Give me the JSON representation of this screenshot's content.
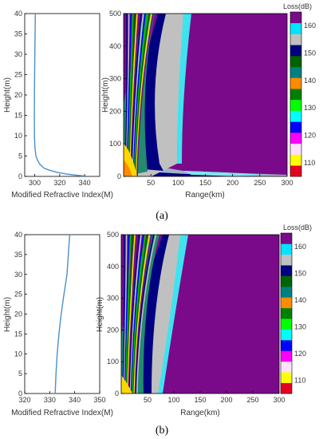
{
  "figure": {
    "panel_a_caption": "(a)",
    "panel_b_caption": "(b)",
    "colorbar_title": "Loss(dB)",
    "colorbar_ticks": [
      110,
      120,
      130,
      140,
      150,
      160
    ],
    "colorbar_range": [
      105,
      165
    ],
    "colorbar_bands": [
      "#e6001f",
      "#ffff00",
      "#ffe1ff",
      "#ff00ff",
      "#0000ff",
      "#00ffff",
      "#00ff00",
      "#008000",
      "#ff8c00",
      "#008080",
      "#006400",
      "#000080",
      "#c0c0c0",
      "#00e5ff",
      "#7a0a8a"
    ]
  },
  "chart_data": [
    {
      "id": "a-profile",
      "type": "line",
      "xlabel": "Modified Refractive Index(M)",
      "ylabel": "Height(m)",
      "xlim": [
        292,
        352
      ],
      "ylim": [
        0,
        40
      ],
      "xticks": [
        300,
        320,
        340
      ],
      "yticks": [
        0,
        5,
        10,
        15,
        20,
        25,
        30,
        35,
        40
      ],
      "color": "#4a90c8",
      "x": [
        300.5,
        300.3,
        300.1,
        299.9,
        299.8,
        299.7,
        299.8,
        300.2,
        301.0,
        302.2,
        304.0,
        307.5,
        312.0,
        318.0,
        325.0,
        333.0,
        340.0
      ],
      "y": [
        40,
        35,
        30,
        25,
        20,
        15,
        10,
        7,
        5,
        4,
        3,
        2,
        1.5,
        1,
        0.6,
        0.3,
        0.1
      ]
    },
    {
      "id": "a-loss",
      "type": "heatmap",
      "xlabel": "Range(km)",
      "ylabel": "Height(m)",
      "xlim": [
        0,
        300
      ],
      "ylim": [
        0,
        500
      ],
      "xticks": [
        50,
        100,
        150,
        200,
        250,
        300
      ],
      "yticks": [
        0,
        100,
        200,
        300,
        400,
        500
      ]
    },
    {
      "id": "b-profile",
      "type": "line",
      "xlabel": "Modified Refractive Index(M)",
      "ylabel": "Height(m)",
      "xlim": [
        320,
        350
      ],
      "ylim": [
        0,
        40
      ],
      "xticks": [
        320,
        330,
        340,
        350
      ],
      "yticks": [
        0,
        5,
        10,
        15,
        20,
        25,
        30,
        35,
        40
      ],
      "color": "#4a90c8",
      "x": [
        332.2,
        332.5,
        333.0,
        333.7,
        334.6,
        335.7,
        336.9,
        338.0
      ],
      "y": [
        0,
        5,
        10,
        15,
        20,
        25,
        30,
        40
      ]
    },
    {
      "id": "b-loss",
      "type": "heatmap",
      "xlabel": "Range(km)",
      "ylabel": "Height(m)",
      "xlim": [
        0,
        300
      ],
      "ylim": [
        0,
        500
      ],
      "xticks": [
        50,
        100,
        150,
        200,
        250,
        300
      ],
      "yticks": [
        0,
        100,
        200,
        300,
        400,
        500
      ]
    }
  ]
}
